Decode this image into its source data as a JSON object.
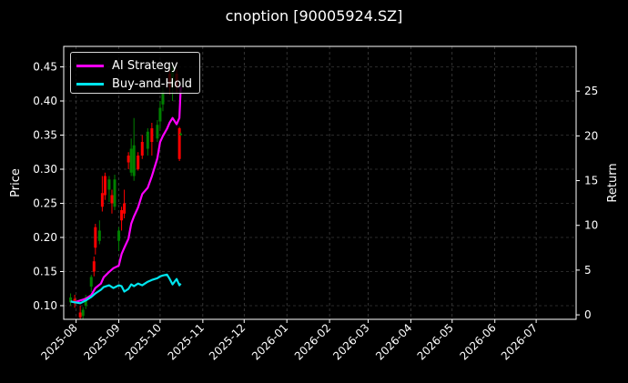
{
  "title": "cnoption [90005924.SZ]",
  "chart_data": {
    "type": "line",
    "title": "cnoption [90005924.SZ]",
    "ylabel": "Price",
    "ylabel_right": "Return",
    "grid": true,
    "legend_position": "top-left",
    "ylim": [
      0.08,
      0.48
    ],
    "ylim_right": [
      -0.5,
      30
    ],
    "yticks": [
      0.1,
      0.15,
      0.2,
      0.25,
      0.3,
      0.35,
      0.4,
      0.45
    ],
    "yticks_right": [
      0,
      5,
      10,
      15,
      20,
      25
    ],
    "xticks": [
      "2025-08",
      "2025-09",
      "2025-10",
      "2025-11",
      "2025-12",
      "2026-01",
      "2026-02",
      "2026-03",
      "2026-04",
      "2026-05",
      "2026-06",
      "2026-07"
    ],
    "colors": {
      "background": "#000000",
      "up": "#008000",
      "down": "#ff0000",
      "ai": "#ff00ff",
      "bh": "#00e5ee",
      "grid": "#555555"
    },
    "series": [
      {
        "name": "AI Strategy",
        "axis": "right",
        "color": "#ff00ff",
        "dates": [
          "2025-07-28",
          "2025-07-31",
          "2025-08-04",
          "2025-08-08",
          "2025-08-12",
          "2025-08-15",
          "2025-08-19",
          "2025-08-21",
          "2025-08-25",
          "2025-08-28",
          "2025-09-01",
          "2025-09-03",
          "2025-09-05",
          "2025-09-08",
          "2025-09-10",
          "2025-09-12",
          "2025-09-15",
          "2025-09-18",
          "2025-09-22",
          "2025-09-25",
          "2025-09-29",
          "2025-10-01",
          "2025-10-03",
          "2025-10-06",
          "2025-10-08",
          "2025-10-10",
          "2025-10-13",
          "2025-10-15",
          "2025-10-16"
        ],
        "values": [
          1.5,
          1.4,
          1.6,
          1.8,
          2.2,
          3.0,
          3.5,
          4.2,
          4.8,
          5.2,
          5.5,
          6.8,
          7.5,
          8.5,
          10.2,
          11.0,
          12.0,
          13.5,
          14.2,
          15.5,
          17.5,
          19.3,
          20.0,
          20.8,
          21.5,
          22.0,
          21.3,
          22.0,
          25.5
        ]
      },
      {
        "name": "Buy-and-Hold",
        "axis": "right",
        "color": "#00e5ee",
        "dates": [
          "2025-07-28",
          "2025-07-31",
          "2025-08-04",
          "2025-08-08",
          "2025-08-12",
          "2025-08-15",
          "2025-08-19",
          "2025-08-21",
          "2025-08-25",
          "2025-08-28",
          "2025-09-01",
          "2025-09-03",
          "2025-09-05",
          "2025-09-08",
          "2025-09-10",
          "2025-09-12",
          "2025-09-15",
          "2025-09-18",
          "2025-09-22",
          "2025-09-25",
          "2025-09-29",
          "2025-10-01",
          "2025-10-03",
          "2025-10-06",
          "2025-10-08",
          "2025-10-10",
          "2025-10-13",
          "2025-10-15",
          "2025-10-16"
        ],
        "values": [
          1.5,
          1.4,
          1.3,
          1.6,
          2.0,
          2.4,
          2.8,
          3.1,
          3.3,
          3.0,
          3.3,
          3.2,
          2.6,
          2.9,
          3.4,
          3.2,
          3.5,
          3.3,
          3.7,
          3.9,
          4.1,
          4.3,
          4.4,
          4.5,
          4.0,
          3.4,
          4.0,
          3.3,
          3.5
        ]
      }
    ],
    "candles": [
      {
        "date": "2025-07-28",
        "open": 0.105,
        "close": 0.112,
        "high": 0.118,
        "low": 0.1
      },
      {
        "date": "2025-07-31",
        "open": 0.11,
        "close": 0.104,
        "high": 0.116,
        "low": 0.097
      },
      {
        "date": "2025-08-04",
        "open": 0.09,
        "close": 0.083,
        "high": 0.1,
        "low": 0.08
      },
      {
        "date": "2025-08-06",
        "open": 0.085,
        "close": 0.094,
        "high": 0.098,
        "low": 0.08
      },
      {
        "date": "2025-08-08",
        "open": 0.1,
        "close": 0.112,
        "high": 0.116,
        "low": 0.095
      },
      {
        "date": "2025-08-12",
        "open": 0.128,
        "close": 0.142,
        "high": 0.145,
        "low": 0.12
      },
      {
        "date": "2025-08-14",
        "open": 0.165,
        "close": 0.15,
        "high": 0.172,
        "low": 0.143
      },
      {
        "date": "2025-08-15",
        "open": 0.215,
        "close": 0.185,
        "high": 0.22,
        "low": 0.175
      },
      {
        "date": "2025-08-18",
        "open": 0.195,
        "close": 0.21,
        "high": 0.225,
        "low": 0.19
      },
      {
        "date": "2025-08-20",
        "open": 0.265,
        "close": 0.245,
        "high": 0.29,
        "low": 0.238
      },
      {
        "date": "2025-08-22",
        "open": 0.29,
        "close": 0.262,
        "high": 0.295,
        "low": 0.255
      },
      {
        "date": "2025-08-25",
        "open": 0.27,
        "close": 0.285,
        "high": 0.29,
        "low": 0.252
      },
      {
        "date": "2025-08-27",
        "open": 0.262,
        "close": 0.25,
        "high": 0.27,
        "low": 0.235
      },
      {
        "date": "2025-08-29",
        "open": 0.245,
        "close": 0.285,
        "high": 0.292,
        "low": 0.24
      },
      {
        "date": "2025-09-01",
        "open": 0.195,
        "close": 0.21,
        "high": 0.215,
        "low": 0.18
      },
      {
        "date": "2025-09-03",
        "open": 0.24,
        "close": 0.225,
        "high": 0.245,
        "low": 0.21
      },
      {
        "date": "2025-09-05",
        "open": 0.25,
        "close": 0.235,
        "high": 0.27,
        "low": 0.228
      },
      {
        "date": "2025-09-08",
        "open": 0.32,
        "close": 0.31,
        "high": 0.325,
        "low": 0.3
      },
      {
        "date": "2025-09-10",
        "open": 0.295,
        "close": 0.33,
        "high": 0.345,
        "low": 0.29
      },
      {
        "date": "2025-09-12",
        "open": 0.29,
        "close": 0.335,
        "high": 0.375,
        "low": 0.283
      },
      {
        "date": "2025-09-15",
        "open": 0.32,
        "close": 0.3,
        "high": 0.325,
        "low": 0.298
      },
      {
        "date": "2025-09-18",
        "open": 0.34,
        "close": 0.32,
        "high": 0.35,
        "low": 0.315
      },
      {
        "date": "2025-09-22",
        "open": 0.33,
        "close": 0.355,
        "high": 0.36,
        "low": 0.32
      },
      {
        "date": "2025-09-25",
        "open": 0.36,
        "close": 0.34,
        "high": 0.368,
        "low": 0.32
      },
      {
        "date": "2025-09-29",
        "open": 0.345,
        "close": 0.365,
        "high": 0.372,
        "low": 0.34
      },
      {
        "date": "2025-10-01",
        "open": 0.37,
        "close": 0.39,
        "high": 0.4,
        "low": 0.36
      },
      {
        "date": "2025-10-03",
        "open": 0.395,
        "close": 0.415,
        "high": 0.42,
        "low": 0.385
      },
      {
        "date": "2025-10-08",
        "open": 0.44,
        "close": 0.42,
        "high": 0.445,
        "low": 0.41
      },
      {
        "date": "2025-10-10",
        "open": 0.42,
        "close": 0.448,
        "high": 0.452,
        "low": 0.4
      },
      {
        "date": "2025-10-13",
        "open": 0.44,
        "close": 0.42,
        "high": 0.446,
        "low": 0.412
      },
      {
        "date": "2025-10-15",
        "open": 0.36,
        "close": 0.315,
        "high": 0.362,
        "low": 0.312
      },
      {
        "date": "2025-10-16",
        "open": 0.35,
        "close": 0.352,
        "high": 0.354,
        "low": 0.349
      }
    ]
  }
}
